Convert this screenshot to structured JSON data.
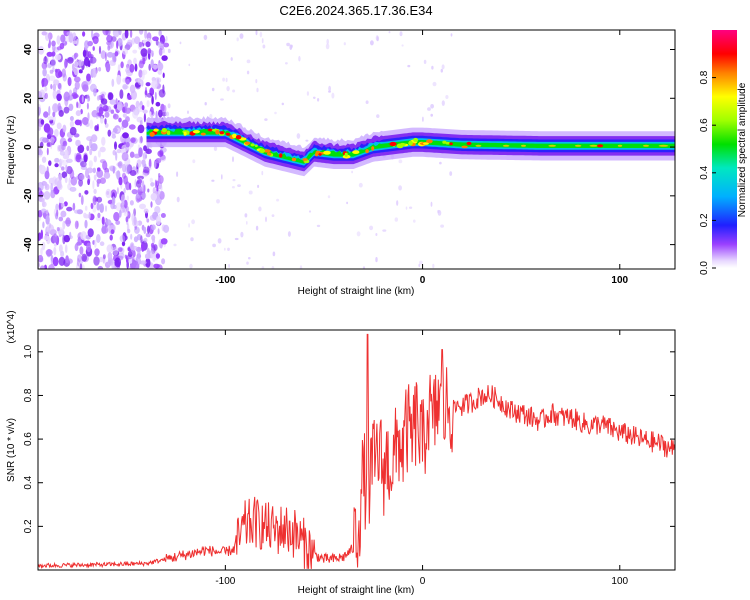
{
  "figure": {
    "title": "C2E6.2024.365.17.36.E34"
  },
  "chart_data": [
    {
      "type": "heatmap",
      "title": "C2E6.2024.365.17.36.E34",
      "xlabel": "Height of straight line (km)",
      "ylabel": "Frequency (Hz)",
      "xlim": [
        -195,
        128
      ],
      "ylim": [
        -50,
        48
      ],
      "x_ticks": [
        -100,
        0,
        100
      ],
      "y_ticks": [
        -40,
        -20,
        0,
        20,
        40
      ],
      "colorbar": {
        "label": "Normalized spectral amplitude",
        "range": [
          0,
          1
        ],
        "ticks": [
          0.0,
          0.2,
          0.4,
          0.6,
          0.8
        ]
      },
      "ridge": [
        {
          "x": -140,
          "y": 6
        },
        {
          "x": -120,
          "y": 6
        },
        {
          "x": -100,
          "y": 6
        },
        {
          "x": -90,
          "y": 2
        },
        {
          "x": -80,
          "y": -2
        },
        {
          "x": -70,
          "y": -4
        },
        {
          "x": -60,
          "y": -6
        },
        {
          "x": -55,
          "y": -2
        },
        {
          "x": -45,
          "y": -3
        },
        {
          "x": -35,
          "y": -3
        },
        {
          "x": -25,
          "y": 0
        },
        {
          "x": -15,
          "y": 1
        },
        {
          "x": -5,
          "y": 2
        },
        {
          "x": 0,
          "y": 2
        },
        {
          "x": 20,
          "y": 1
        },
        {
          "x": 60,
          "y": 0.5
        },
        {
          "x": 100,
          "y": 0.5
        },
        {
          "x": 128,
          "y": 0.5
        }
      ],
      "grid": false
    },
    {
      "type": "line",
      "xlabel": "Height of straight line (km)",
      "ylabel": "SNR (10 * v/v)",
      "y_multiplier": "(x10^4)",
      "xlim": [
        -195,
        128
      ],
      "ylim": [
        0,
        1.1
      ],
      "x_ticks": [
        -100,
        0,
        100
      ],
      "y_ticks": [
        0.2,
        0.4,
        0.6,
        0.8,
        1.0
      ],
      "series": [
        {
          "color": "#ee3030",
          "x": [
            -195,
            -160,
            -140,
            -130,
            -120,
            -110,
            -100,
            -95,
            -90,
            -85,
            -80,
            -75,
            -70,
            -65,
            -60,
            -55,
            -50,
            -45,
            -40,
            -35,
            -32,
            -30,
            -28,
            -26,
            -24,
            -22,
            -20,
            -18,
            -15,
            -12,
            -10,
            -8,
            -5,
            -3,
            0,
            3,
            5,
            8,
            10,
            13,
            15,
            18,
            20,
            25,
            30,
            35,
            40,
            45,
            50,
            55,
            60,
            65,
            70,
            75,
            80,
            85,
            90,
            95,
            100,
            105,
            110,
            115,
            120,
            125,
            128
          ],
          "y": [
            0.02,
            0.025,
            0.03,
            0.05,
            0.07,
            0.09,
            0.08,
            0.1,
            0.2,
            0.22,
            0.2,
            0.18,
            0.19,
            0.17,
            0.12,
            0.07,
            0.05,
            0.05,
            0.06,
            0.1,
            0.25,
            0.45,
            0.35,
            0.45,
            0.5,
            0.55,
            0.45,
            0.5,
            0.48,
            0.6,
            0.55,
            0.65,
            0.6,
            0.7,
            0.55,
            0.75,
            0.65,
            0.78,
            0.7,
            0.76,
            0.72,
            0.76,
            0.75,
            0.77,
            0.8,
            0.8,
            0.77,
            0.73,
            0.72,
            0.7,
            0.68,
            0.72,
            0.7,
            0.7,
            0.68,
            0.66,
            0.67,
            0.65,
            0.63,
            0.62,
            0.6,
            0.59,
            0.58,
            0.56,
            0.55
          ]
        }
      ],
      "grid": false
    }
  ]
}
